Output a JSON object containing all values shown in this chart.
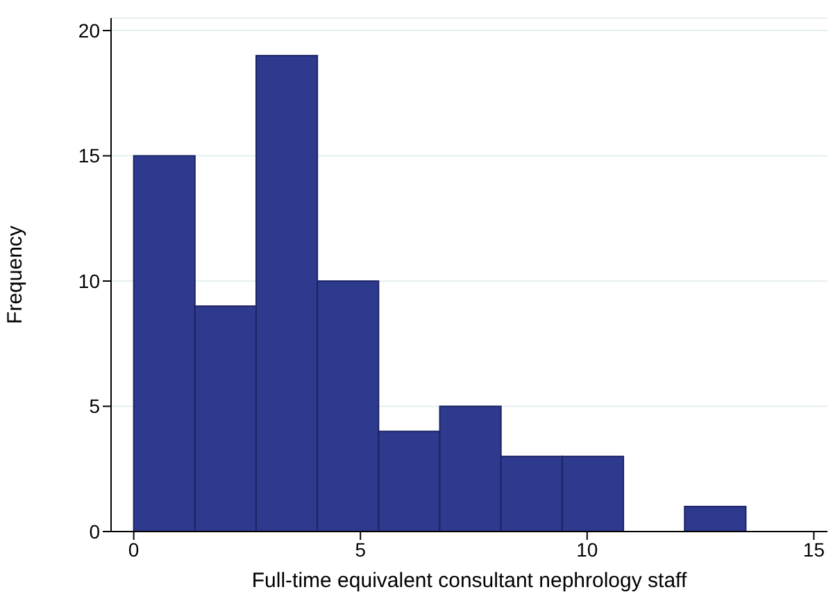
{
  "chart_data": {
    "type": "histogram",
    "xlabel": "Full-time equivalent consultant nephrology staff",
    "ylabel": "Frequency",
    "bins": [
      0,
      1.35,
      2.7,
      4.05,
      5.4,
      6.75,
      8.1,
      9.45,
      10.8,
      12.15,
      13.5
    ],
    "values": [
      15,
      9,
      19,
      10,
      4,
      5,
      3,
      3,
      0,
      1
    ],
    "color": "#2e3a8e",
    "xlim": [
      -0.5,
      15.3
    ],
    "xticks": [
      0,
      5,
      10,
      15
    ],
    "ylim": [
      0,
      20.5
    ],
    "yticks": [
      0,
      5,
      10,
      15,
      20
    ],
    "grid": "y"
  }
}
